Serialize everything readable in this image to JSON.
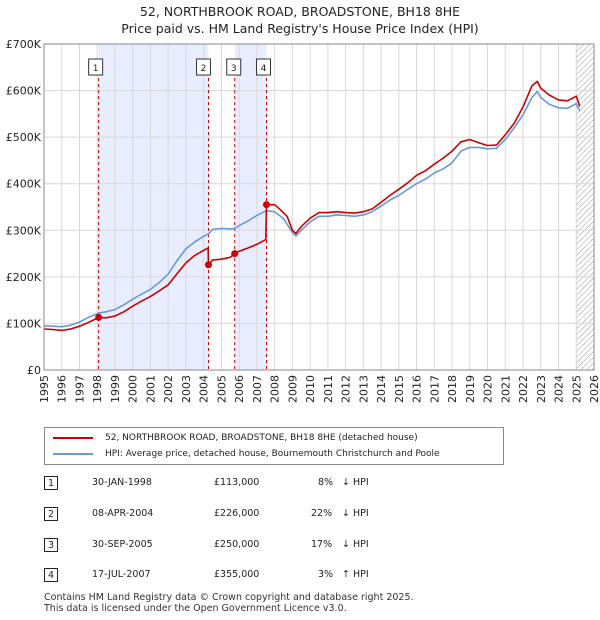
{
  "chart_data": {
    "type": "line",
    "title": "52, NORTHBROOK ROAD, BROADSTONE, BH18 8HE",
    "subtitle": "Price paid vs. HM Land Registry's House Price Index (HPI)",
    "xlim": [
      1995,
      2026
    ],
    "ylim": [
      0,
      700000
    ],
    "yticks": [
      0,
      100000,
      200000,
      300000,
      400000,
      500000,
      600000,
      700000
    ],
    "ytick_labels": [
      "£0",
      "£100K",
      "£200K",
      "£300K",
      "£400K",
      "£500K",
      "£600K",
      "£700K"
    ],
    "xticks": [
      1995,
      1996,
      1997,
      1998,
      1999,
      2000,
      2001,
      2002,
      2003,
      2004,
      2005,
      2006,
      2007,
      2008,
      2009,
      2010,
      2011,
      2012,
      2013,
      2014,
      2015,
      2016,
      2017,
      2018,
      2019,
      2020,
      2021,
      2022,
      2023,
      2024,
      2025,
      2026
    ],
    "grid": true,
    "shaded_periods": [
      [
        1998.08,
        2004.27
      ],
      [
        2005.75,
        2007.54
      ]
    ],
    "hatched_from": 2025.0,
    "series": [
      {
        "name": "52, NORTHBROOK ROAD, BROADSTONE, BH18 8HE (detached house)",
        "color": "#cc0000",
        "points": [
          [
            1995.0,
            88000
          ],
          [
            1995.5,
            87000
          ],
          [
            1996.0,
            85000
          ],
          [
            1996.5,
            88000
          ],
          [
            1997.0,
            94000
          ],
          [
            1997.5,
            102000
          ],
          [
            1998.08,
            113000
          ],
          [
            1998.5,
            112000
          ],
          [
            1999.0,
            116000
          ],
          [
            1999.5,
            125000
          ],
          [
            2000.0,
            137000
          ],
          [
            2000.5,
            148000
          ],
          [
            2001.0,
            158000
          ],
          [
            2001.5,
            170000
          ],
          [
            2002.0,
            183000
          ],
          [
            2002.5,
            207000
          ],
          [
            2003.0,
            230000
          ],
          [
            2003.5,
            246000
          ],
          [
            2004.0,
            257000
          ],
          [
            2004.25,
            262000
          ],
          [
            2004.27,
            226000
          ],
          [
            2004.5,
            236000
          ],
          [
            2005.0,
            238000
          ],
          [
            2005.5,
            242000
          ],
          [
            2005.75,
            250000
          ],
          [
            2006.0,
            255000
          ],
          [
            2006.5,
            262000
          ],
          [
            2007.0,
            270000
          ],
          [
            2007.5,
            280000
          ],
          [
            2007.54,
            355000
          ],
          [
            2008.0,
            355000
          ],
          [
            2008.3,
            345000
          ],
          [
            2008.7,
            330000
          ],
          [
            2009.0,
            300000
          ],
          [
            2009.2,
            293000
          ],
          [
            2009.5,
            308000
          ],
          [
            2010.0,
            326000
          ],
          [
            2010.5,
            338000
          ],
          [
            2011.0,
            338000
          ],
          [
            2011.5,
            340000
          ],
          [
            2012.0,
            338000
          ],
          [
            2012.5,
            337000
          ],
          [
            2013.0,
            340000
          ],
          [
            2013.5,
            346000
          ],
          [
            2014.0,
            360000
          ],
          [
            2014.5,
            375000
          ],
          [
            2015.0,
            388000
          ],
          [
            2015.5,
            402000
          ],
          [
            2016.0,
            418000
          ],
          [
            2016.5,
            428000
          ],
          [
            2017.0,
            442000
          ],
          [
            2017.5,
            455000
          ],
          [
            2018.0,
            470000
          ],
          [
            2018.5,
            490000
          ],
          [
            2019.0,
            495000
          ],
          [
            2019.5,
            488000
          ],
          [
            2020.0,
            482000
          ],
          [
            2020.5,
            483000
          ],
          [
            2021.0,
            505000
          ],
          [
            2021.5,
            530000
          ],
          [
            2022.0,
            565000
          ],
          [
            2022.5,
            610000
          ],
          [
            2022.8,
            620000
          ],
          [
            2023.0,
            605000
          ],
          [
            2023.5,
            590000
          ],
          [
            2024.0,
            580000
          ],
          [
            2024.5,
            578000
          ],
          [
            2025.0,
            588000
          ],
          [
            2025.2,
            566000
          ]
        ]
      },
      {
        "name": "HPI: Average price, detached house, Bournemouth Christchurch and Poole",
        "color": "#6699dd",
        "points": [
          [
            1995.0,
            95000
          ],
          [
            1995.5,
            94000
          ],
          [
            1996.0,
            93000
          ],
          [
            1996.5,
            96000
          ],
          [
            1997.0,
            103000
          ],
          [
            1997.5,
            113000
          ],
          [
            1998.08,
            122000
          ],
          [
            1998.5,
            125000
          ],
          [
            1999.0,
            130000
          ],
          [
            1999.5,
            140000
          ],
          [
            2000.0,
            152000
          ],
          [
            2000.5,
            163000
          ],
          [
            2001.0,
            173000
          ],
          [
            2001.5,
            188000
          ],
          [
            2002.0,
            206000
          ],
          [
            2002.5,
            235000
          ],
          [
            2003.0,
            260000
          ],
          [
            2003.5,
            275000
          ],
          [
            2004.0,
            287000
          ],
          [
            2004.27,
            292000
          ],
          [
            2004.5,
            302000
          ],
          [
            2005.0,
            304000
          ],
          [
            2005.5,
            303000
          ],
          [
            2005.75,
            304000
          ],
          [
            2006.0,
            310000
          ],
          [
            2006.5,
            320000
          ],
          [
            2007.0,
            332000
          ],
          [
            2007.54,
            342000
          ],
          [
            2008.0,
            340000
          ],
          [
            2008.5,
            325000
          ],
          [
            2009.0,
            295000
          ],
          [
            2009.2,
            288000
          ],
          [
            2009.5,
            300000
          ],
          [
            2010.0,
            318000
          ],
          [
            2010.5,
            330000
          ],
          [
            2011.0,
            330000
          ],
          [
            2011.5,
            333000
          ],
          [
            2012.0,
            332000
          ],
          [
            2012.5,
            330000
          ],
          [
            2013.0,
            333000
          ],
          [
            2013.5,
            340000
          ],
          [
            2014.0,
            352000
          ],
          [
            2014.5,
            365000
          ],
          [
            2015.0,
            375000
          ],
          [
            2015.5,
            388000
          ],
          [
            2016.0,
            400000
          ],
          [
            2016.5,
            410000
          ],
          [
            2017.0,
            423000
          ],
          [
            2017.5,
            432000
          ],
          [
            2018.0,
            445000
          ],
          [
            2018.5,
            470000
          ],
          [
            2019.0,
            478000
          ],
          [
            2019.5,
            478000
          ],
          [
            2020.0,
            475000
          ],
          [
            2020.5,
            476000
          ],
          [
            2021.0,
            495000
          ],
          [
            2021.5,
            520000
          ],
          [
            2022.0,
            548000
          ],
          [
            2022.5,
            585000
          ],
          [
            2022.8,
            598000
          ],
          [
            2023.0,
            585000
          ],
          [
            2023.5,
            570000
          ],
          [
            2024.0,
            563000
          ],
          [
            2024.5,
            562000
          ],
          [
            2025.0,
            572000
          ],
          [
            2025.2,
            556000
          ]
        ]
      }
    ],
    "sales": [
      {
        "label": "1",
        "x": 1998.08,
        "value": 113000
      },
      {
        "label": "2",
        "x": 2004.27,
        "value": 226000
      },
      {
        "label": "3",
        "x": 2005.75,
        "value": 250000
      },
      {
        "label": "4",
        "x": 2007.54,
        "value": 355000
      }
    ]
  },
  "legend": {
    "property": "52, NORTHBROOK ROAD, BROADSTONE, BH18 8HE (detached house)",
    "hpi": "HPI: Average price, detached house, Bournemouth Christchurch and Poole"
  },
  "transactions": [
    {
      "num": "1",
      "date": "30-JAN-1998",
      "price": "£113,000",
      "pct": "8%",
      "dir": "↓",
      "ref": "HPI"
    },
    {
      "num": "2",
      "date": "08-APR-2004",
      "price": "£226,000",
      "pct": "22%",
      "dir": "↓",
      "ref": "HPI"
    },
    {
      "num": "3",
      "date": "30-SEP-2005",
      "price": "£250,000",
      "pct": "17%",
      "dir": "↓",
      "ref": "HPI"
    },
    {
      "num": "4",
      "date": "17-JUL-2007",
      "price": "£355,000",
      "pct": "3%",
      "dir": "↑",
      "ref": "HPI"
    }
  ],
  "footer": {
    "line1": "Contains HM Land Registry data © Crown copyright and database right 2025.",
    "line2": "This data is licensed under the Open Government Licence v3.0."
  },
  "colors": {
    "property": "#cc0000",
    "hpi": "#6699dd",
    "shade": "#e8eeff",
    "grid": "#d8d8d8"
  }
}
